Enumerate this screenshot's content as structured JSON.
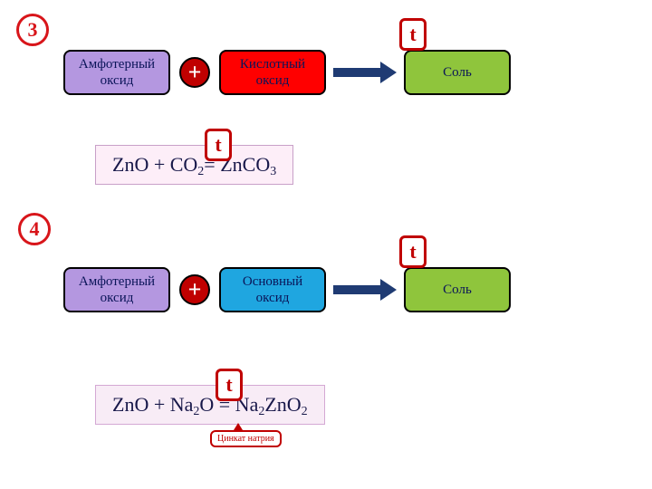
{
  "colors": {
    "circle_red": "#d8151a",
    "box_purple_bg": "#b497e0",
    "box_purple_text": "#0a1458",
    "box_red_bg": "#ff0000",
    "box_red_text": "#0a1458",
    "box_blue_bg": "#1fa6e0",
    "box_blue_text": "#0a1458",
    "box_green_bg": "#8fc53c",
    "box_green_text": "#0a1458",
    "plus_bg": "#c00000",
    "plus_text": "#ffffff",
    "arrow": "#1f3b73",
    "t_border": "#c00000",
    "t_text": "#c00000",
    "eq_border3": "#c8a0c8",
    "eq_bg3": "#fdeef8",
    "eq_text3": "#18184a",
    "eq_border4": "#d4a8d4",
    "eq_bg4": "#f8ecf6",
    "eq_text4": "#18184a",
    "annot_border": "#c00000",
    "annot_text": "#c00000"
  },
  "labels": {
    "num3": "3",
    "num4": "4",
    "amphoteric": "Амфотерный оксид",
    "acidic": "Кислотный оксид",
    "basic": "Основный оксид",
    "salt": "Соль",
    "plus": "+",
    "t": "t",
    "annot": "Цинкат натрия"
  },
  "eq3": {
    "parts": [
      "ZnO + CO",
      "2",
      " = ZnCO",
      "3"
    ]
  },
  "eq4": {
    "parts": [
      "ZnO + Na",
      "2",
      "O = Na",
      "2",
      "ZnO",
      "2"
    ]
  },
  "layout": {
    "box1_w": 118,
    "box1_h": 50,
    "box2_w": 118,
    "box2_h": 50,
    "box3_w": 118,
    "box3_h": 50
  }
}
